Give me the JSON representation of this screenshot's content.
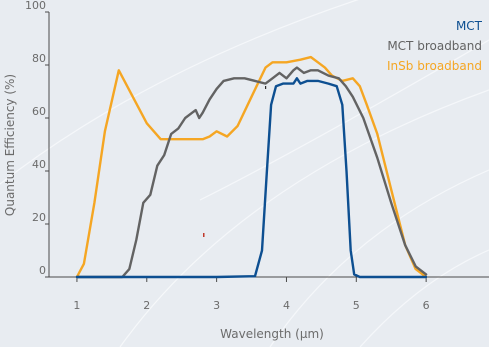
{
  "chart_data": {
    "type": "line",
    "title": "",
    "xlabel": "Wavelength (µm)",
    "ylabel": "Quantum Efficiency (%)",
    "xlim": [
      0.6,
      6.9
    ],
    "ylim": [
      0,
      100
    ],
    "x_ticks": [
      "1",
      "2",
      "3",
      "4",
      "5",
      "6"
    ],
    "y_ticks": [
      "0",
      "20",
      "40",
      "60",
      "80",
      "100"
    ],
    "grid": false,
    "legend_position": "top-right",
    "series": [
      {
        "name": "MCT",
        "color": "#0d4f91",
        "x": [
          1.0,
          2.0,
          3.0,
          3.55,
          3.65,
          3.72,
          3.78,
          3.85,
          3.95,
          4.1,
          4.15,
          4.2,
          4.3,
          4.45,
          4.6,
          4.72,
          4.8,
          4.86,
          4.92,
          4.97,
          5.05,
          6.0
        ],
        "y": [
          0,
          0,
          0,
          0.3,
          10,
          40,
          65,
          72,
          73,
          73,
          75,
          73,
          74,
          74,
          73,
          72,
          65,
          40,
          10,
          1,
          0,
          0
        ]
      },
      {
        "name": "MCT broadband",
        "color": "#636363",
        "x": [
          1.0,
          1.65,
          1.75,
          1.85,
          1.95,
          2.05,
          2.15,
          2.25,
          2.35,
          2.45,
          2.55,
          2.65,
          2.7,
          2.75,
          2.8,
          2.9,
          3.0,
          3.1,
          3.25,
          3.4,
          3.55,
          3.7,
          3.8,
          3.9,
          4.0,
          4.1,
          4.15,
          4.25,
          4.35,
          4.45,
          4.6,
          4.75,
          4.85,
          4.95,
          5.1,
          5.3,
          5.5,
          5.7,
          5.85,
          6.0
        ],
        "y": [
          0,
          0,
          3,
          14,
          28,
          31,
          42,
          46,
          54,
          56,
          60,
          62,
          63,
          60,
          62,
          67,
          71,
          74,
          75,
          75,
          74,
          73,
          75,
          77,
          75,
          78,
          79,
          77,
          78,
          78,
          76,
          75,
          72,
          68,
          60,
          45,
          28,
          12,
          4,
          1
        ]
      },
      {
        "name": "InSb broadband",
        "color": "#f5a623",
        "x": [
          1.0,
          1.1,
          1.25,
          1.4,
          1.6,
          1.8,
          2.0,
          2.2,
          2.4,
          2.6,
          2.8,
          2.9,
          3.0,
          3.15,
          3.3,
          3.5,
          3.7,
          3.8,
          4.0,
          4.2,
          4.35,
          4.45,
          4.55,
          4.65,
          4.8,
          4.95,
          5.05,
          5.15,
          5.3,
          5.5,
          5.7,
          5.85,
          6.0
        ],
        "y": [
          0,
          5,
          28,
          55,
          78,
          68,
          58,
          52,
          52,
          52,
          52,
          53,
          55,
          53,
          57,
          68,
          79,
          81,
          81,
          82,
          83,
          81,
          79,
          76,
          74,
          75,
          72,
          65,
          54,
          33,
          12,
          3,
          0
        ]
      }
    ]
  }
}
